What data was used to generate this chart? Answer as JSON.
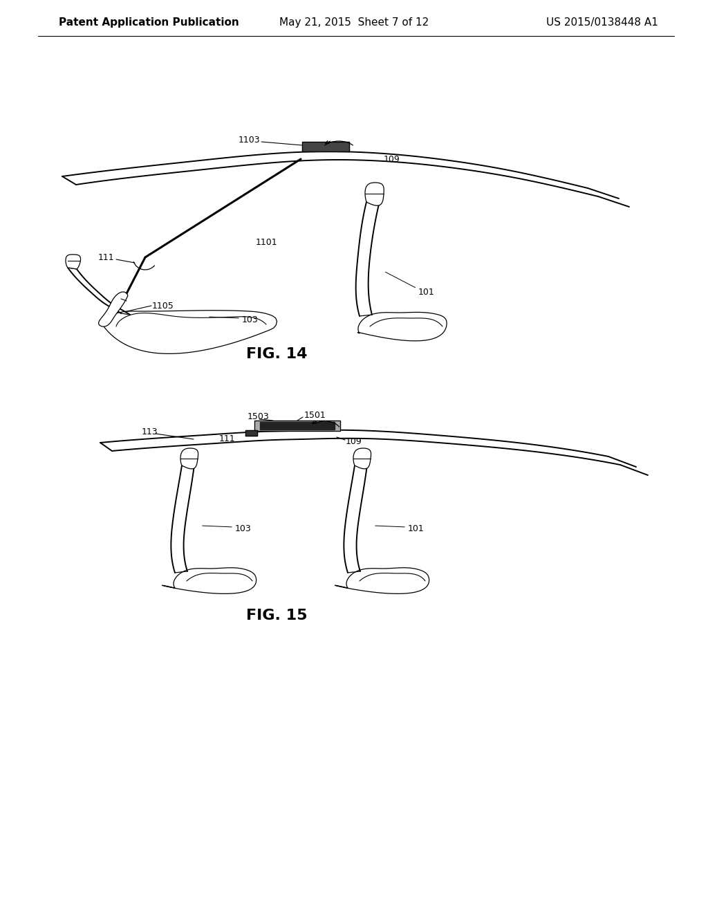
{
  "bg_color": "#ffffff",
  "line_color": "#000000",
  "header_left": "Patent Application Publication",
  "header_mid": "May 21, 2015  Sheet 7 of 12",
  "header_right": "US 2015/0138448 A1",
  "fig14_label": "FIG. 14",
  "fig15_label": "FIG. 15",
  "header_fontsize": 11,
  "fig_label_fontsize": 16,
  "annotation_fontsize": 9
}
